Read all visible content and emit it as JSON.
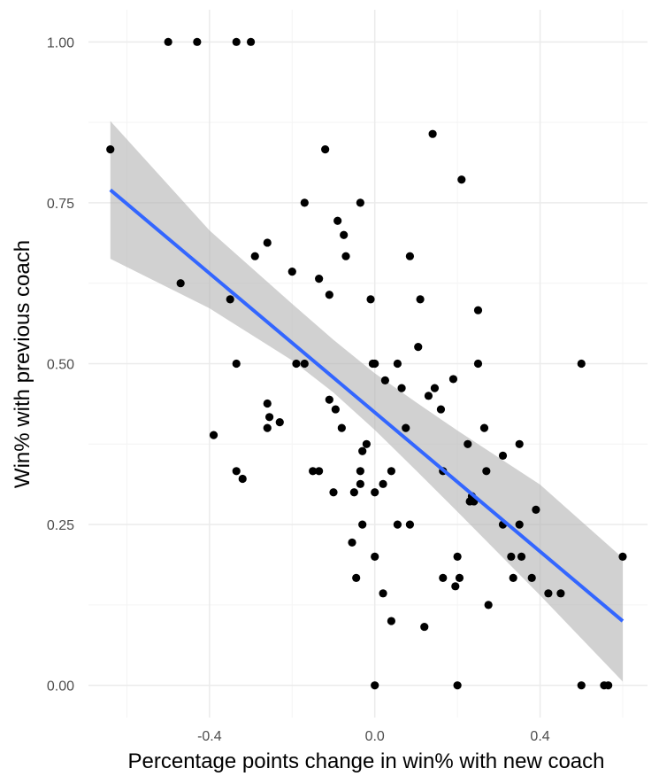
{
  "chart_data": {
    "type": "scatter",
    "xlabel": "Percentage points change in win% with new coach",
    "ylabel": "Win% with previous coach",
    "xlim": [
      -0.693,
      0.66
    ],
    "ylim": [
      -0.05,
      1.05
    ],
    "x_ticks": [
      {
        "value": -0.4,
        "label": "-0.4"
      },
      {
        "value": 0.0,
        "label": "0.0"
      },
      {
        "value": 0.4,
        "label": "0.4"
      }
    ],
    "x_minor_ticks": [
      -0.6,
      -0.2,
      0.2,
      0.6
    ],
    "y_ticks": [
      {
        "value": 0.0,
        "label": "0.00"
      },
      {
        "value": 0.25,
        "label": "0.25"
      },
      {
        "value": 0.5,
        "label": "0.50"
      },
      {
        "value": 0.75,
        "label": "0.75"
      },
      {
        "value": 1.0,
        "label": "1.00"
      }
    ],
    "y_minor_ticks": [
      0.125,
      0.375,
      0.625,
      0.875
    ],
    "grid": true,
    "points": [
      {
        "x": -0.5,
        "y": 1.0
      },
      {
        "x": -0.43,
        "y": 1.0
      },
      {
        "x": -0.335,
        "y": 1.0
      },
      {
        "x": -0.3,
        "y": 1.0
      },
      {
        "x": -0.64,
        "y": 0.833
      },
      {
        "x": 0.14,
        "y": 0.857
      },
      {
        "x": -0.12,
        "y": 0.833
      },
      {
        "x": 0.21,
        "y": 0.786
      },
      {
        "x": -0.17,
        "y": 0.75
      },
      {
        "x": -0.035,
        "y": 0.75
      },
      {
        "x": -0.09,
        "y": 0.722
      },
      {
        "x": -0.075,
        "y": 0.7
      },
      {
        "x": -0.26,
        "y": 0.688
      },
      {
        "x": -0.29,
        "y": 0.667
      },
      {
        "x": -0.07,
        "y": 0.667
      },
      {
        "x": 0.085,
        "y": 0.667
      },
      {
        "x": -0.2,
        "y": 0.643
      },
      {
        "x": -0.135,
        "y": 0.632
      },
      {
        "x": -0.47,
        "y": 0.625
      },
      {
        "x": -0.11,
        "y": 0.607
      },
      {
        "x": -0.35,
        "y": 0.6
      },
      {
        "x": -0.01,
        "y": 0.6
      },
      {
        "x": 0.11,
        "y": 0.6
      },
      {
        "x": 0.25,
        "y": 0.583
      },
      {
        "x": 0.105,
        "y": 0.526
      },
      {
        "x": -0.335,
        "y": 0.5
      },
      {
        "x": -0.19,
        "y": 0.5
      },
      {
        "x": -0.17,
        "y": 0.5
      },
      {
        "x": -0.005,
        "y": 0.5
      },
      {
        "x": 0.0,
        "y": 0.5
      },
      {
        "x": 0.055,
        "y": 0.5
      },
      {
        "x": 0.25,
        "y": 0.5
      },
      {
        "x": 0.5,
        "y": 0.5
      },
      {
        "x": 0.025,
        "y": 0.474
      },
      {
        "x": 0.19,
        "y": 0.476
      },
      {
        "x": 0.065,
        "y": 0.462
      },
      {
        "x": 0.145,
        "y": 0.462
      },
      {
        "x": 0.13,
        "y": 0.45
      },
      {
        "x": -0.11,
        "y": 0.444
      },
      {
        "x": -0.26,
        "y": 0.438
      },
      {
        "x": -0.095,
        "y": 0.429
      },
      {
        "x": 0.16,
        "y": 0.429
      },
      {
        "x": -0.255,
        "y": 0.417
      },
      {
        "x": -0.23,
        "y": 0.409
      },
      {
        "x": -0.26,
        "y": 0.4
      },
      {
        "x": -0.08,
        "y": 0.4
      },
      {
        "x": 0.075,
        "y": 0.4
      },
      {
        "x": 0.265,
        "y": 0.4
      },
      {
        "x": -0.39,
        "y": 0.389
      },
      {
        "x": -0.02,
        "y": 0.375
      },
      {
        "x": 0.225,
        "y": 0.375
      },
      {
        "x": 0.35,
        "y": 0.375
      },
      {
        "x": -0.03,
        "y": 0.364
      },
      {
        "x": 0.31,
        "y": 0.357
      },
      {
        "x": -0.335,
        "y": 0.333
      },
      {
        "x": -0.15,
        "y": 0.333
      },
      {
        "x": -0.135,
        "y": 0.333
      },
      {
        "x": -0.035,
        "y": 0.333
      },
      {
        "x": 0.04,
        "y": 0.333
      },
      {
        "x": 0.165,
        "y": 0.333
      },
      {
        "x": 0.27,
        "y": 0.333
      },
      {
        "x": -0.32,
        "y": 0.321
      },
      {
        "x": -0.035,
        "y": 0.313
      },
      {
        "x": 0.02,
        "y": 0.313
      },
      {
        "x": -0.1,
        "y": 0.3
      },
      {
        "x": -0.05,
        "y": 0.3
      },
      {
        "x": 0.0,
        "y": 0.3
      },
      {
        "x": 0.235,
        "y": 0.294
      },
      {
        "x": 0.23,
        "y": 0.286
      },
      {
        "x": 0.24,
        "y": 0.286
      },
      {
        "x": 0.39,
        "y": 0.273
      },
      {
        "x": -0.03,
        "y": 0.25
      },
      {
        "x": 0.055,
        "y": 0.25
      },
      {
        "x": 0.085,
        "y": 0.25
      },
      {
        "x": 0.31,
        "y": 0.25
      },
      {
        "x": 0.35,
        "y": 0.25
      },
      {
        "x": -0.055,
        "y": 0.222
      },
      {
        "x": 0.0,
        "y": 0.2
      },
      {
        "x": 0.2,
        "y": 0.2
      },
      {
        "x": 0.33,
        "y": 0.2
      },
      {
        "x": 0.355,
        "y": 0.2
      },
      {
        "x": 0.6,
        "y": 0.2
      },
      {
        "x": -0.045,
        "y": 0.167
      },
      {
        "x": 0.165,
        "y": 0.167
      },
      {
        "x": 0.205,
        "y": 0.167
      },
      {
        "x": 0.335,
        "y": 0.167
      },
      {
        "x": 0.38,
        "y": 0.167
      },
      {
        "x": 0.195,
        "y": 0.154
      },
      {
        "x": 0.02,
        "y": 0.143
      },
      {
        "x": 0.42,
        "y": 0.143
      },
      {
        "x": 0.45,
        "y": 0.143
      },
      {
        "x": 0.275,
        "y": 0.125
      },
      {
        "x": 0.04,
        "y": 0.1
      },
      {
        "x": 0.12,
        "y": 0.091
      },
      {
        "x": 0.0,
        "y": 0.0
      },
      {
        "x": 0.2,
        "y": 0.0
      },
      {
        "x": 0.5,
        "y": 0.0
      },
      {
        "x": 0.555,
        "y": 0.0
      },
      {
        "x": 0.565,
        "y": 0.0
      }
    ],
    "fit": {
      "method": "lm",
      "x_start": -0.64,
      "y_start": 0.77,
      "x_end": 0.6,
      "y_end": 0.1,
      "band": [
        {
          "x": -0.64,
          "lower": 0.663,
          "upper": 0.877
        },
        {
          "x": -0.4,
          "lower": 0.586,
          "upper": 0.707
        },
        {
          "x": -0.2,
          "lower": 0.505,
          "upper": 0.593
        },
        {
          "x": -0.1,
          "lower": 0.455,
          "upper": 0.537
        },
        {
          "x": 0.0,
          "lower": 0.397,
          "upper": 0.485
        },
        {
          "x": 0.1,
          "lower": 0.334,
          "upper": 0.44
        },
        {
          "x": 0.2,
          "lower": 0.27,
          "upper": 0.396
        },
        {
          "x": 0.4,
          "lower": 0.14,
          "upper": 0.312
        },
        {
          "x": 0.6,
          "lower": 0.006,
          "upper": 0.198
        }
      ]
    },
    "colors": {
      "points": "#000000",
      "fit_line": "#3366ff",
      "band": "#b3b3b3",
      "major_grid": "#ebebeb",
      "minor_grid": "#f4f4f4",
      "tick_text": "#4d4d4d",
      "axis_title": "#000000"
    }
  }
}
